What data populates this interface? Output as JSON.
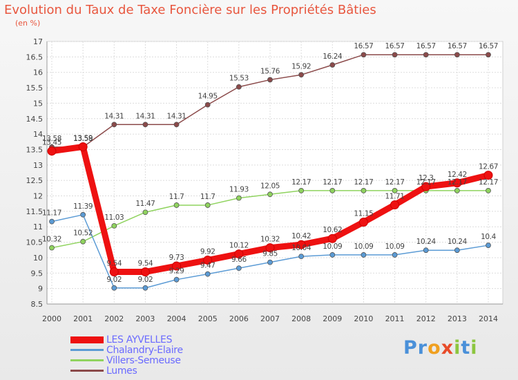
{
  "title": "Evolution du Taux de Taxe Foncière sur les Propriétés Bâties",
  "subtitle": "(en %)",
  "logo": {
    "text": "Proxiti",
    "letters": [
      "P",
      "r",
      "o",
      "x",
      "i",
      "t",
      "i"
    ],
    "colors": [
      "#4a90d9",
      "#4a90d9",
      "#f0a020",
      "#e84c2a",
      "#8cc63f",
      "#4a90d9",
      "#8cc63f"
    ]
  },
  "chart_data": {
    "type": "line",
    "title": "Evolution du Taux de Taxe Foncière sur les Propriétés Bâties",
    "ylabel": "(en %)",
    "xlabel": "",
    "categories": [
      "2000",
      "2001",
      "2002",
      "2003",
      "2004",
      "2005",
      "2006",
      "2007",
      "2008",
      "2009",
      "2010",
      "2011",
      "2012",
      "2013",
      "2014"
    ],
    "ylim": [
      8.5,
      17
    ],
    "yticks": [
      "8.5",
      "9",
      "9.5",
      "10",
      "10.5",
      "11",
      "11.5",
      "12",
      "12.5",
      "13",
      "13.5",
      "14",
      "14.5",
      "15",
      "15.5",
      "16",
      "16.5",
      "17"
    ],
    "grid": true,
    "legend_position": "bottom-left",
    "series": [
      {
        "name": "LES AYVELLES",
        "color": "#ee1111",
        "width": 9,
        "values": [
          13.45,
          13.59,
          9.54,
          9.54,
          9.73,
          9.92,
          10.12,
          10.32,
          10.42,
          10.62,
          11.15,
          11.71,
          12.3,
          12.42,
          12.67
        ],
        "labels": [
          "13.45",
          "13.59",
          "9.54",
          "9.54",
          "9.73",
          "9.92",
          "10.12",
          "10.32",
          "10.42",
          "10.62",
          "11.15",
          "11.71",
          "12.3",
          "12.42",
          "12.67"
        ]
      },
      {
        "name": "Chalandry-Elaire",
        "color": "#5b9bd5",
        "width": 1.5,
        "values": [
          11.17,
          11.39,
          9.02,
          9.02,
          9.29,
          9.47,
          9.66,
          9.85,
          10.04,
          10.09,
          10.09,
          10.09,
          10.24,
          10.24,
          10.4
        ],
        "labels": [
          "11.17",
          "11.39",
          "9.02",
          "9.02",
          "9.29",
          "9.47",
          "9.66",
          "9.85",
          "10.04",
          "10.09",
          "10.09",
          "10.09",
          "10.24",
          "10.24",
          "10.4"
        ]
      },
      {
        "name": "Villers-Semeuse",
        "color": "#8fd35e",
        "width": 1.5,
        "values": [
          10.32,
          10.52,
          11.03,
          11.47,
          11.7,
          11.7,
          11.93,
          12.05,
          12.17,
          12.17,
          12.17,
          12.17,
          12.17,
          12.17,
          12.17
        ],
        "labels": [
          "10.32",
          "10.52",
          "11.03",
          "11.47",
          "11.7",
          "11.7",
          "11.93",
          "12.05",
          "12.17",
          "12.17",
          "12.17",
          "12.17",
          "12.17",
          "12.17",
          "12.17"
        ]
      },
      {
        "name": "Lumes",
        "color": "#8b4a4a",
        "width": 1.5,
        "values": [
          13.58,
          13.58,
          14.31,
          14.31,
          14.31,
          14.95,
          15.53,
          15.76,
          15.92,
          16.24,
          16.57,
          16.57,
          16.57,
          16.57,
          16.57
        ],
        "labels": [
          "13.58",
          "13.58",
          "14.31",
          "14.31",
          "14.31",
          "14.95",
          "15.53",
          "15.76",
          "15.92",
          "16.24",
          "16.57",
          "16.57",
          "16.57",
          "16.57",
          "16.57"
        ]
      }
    ]
  }
}
